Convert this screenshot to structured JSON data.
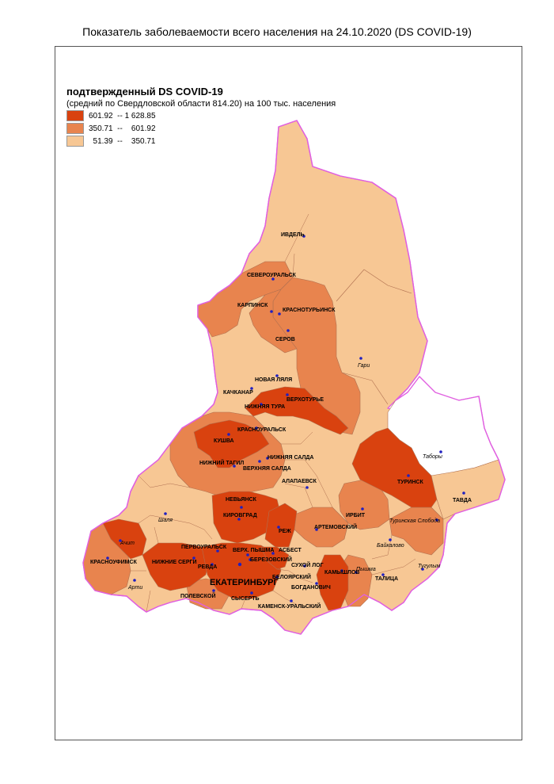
{
  "title": "Показатель заболеваемости всего населения  на 24.10.2020 (DS  COVID-19)",
  "legend": {
    "title": "подтвержденный DS  COVID-19",
    "subtitle": "(средний по Свердловской области 814.20) на 100 тыс. населения",
    "classes": [
      {
        "label": "601.92  -- 1 628.85",
        "color": "#d9420f"
      },
      {
        "label": "350.71  --    601.92",
        "color": "#e8844e"
      },
      {
        "label": "  51.39  --    350.71",
        "color": "#f7c794"
      }
    ]
  },
  "colors": {
    "high": "#d9420f",
    "mid": "#e8844e",
    "low": "#f7c794",
    "none": "#ffffff",
    "border": "#e060e0",
    "dot": "#2020c0"
  },
  "cities": {
    "ivdel": "ИВДЕЛЬ",
    "severouralsk": "СЕВЕРОУРАЛЬСК",
    "karpinsk": "КАРПИНСК",
    "krasnoturinsk": "КРАСНОТУРЬИНСК",
    "serov": "СЕРОВ",
    "gari": "Гари",
    "novaya_lyalya": "НОВАЯ ЛЯЛЯ",
    "kachkanar": "КАЧКАНАР",
    "verkhoturye": "ВЕРХОТУРЬЕ",
    "nizhnyaya_tura": "НИЖНЯЯ ТУРА",
    "kushva": "КУШВА",
    "krasnouralsk": "КРАСНОУРАЛЬСК",
    "nizhny_tagil": "НИЖНИЙ ТАГИЛ",
    "nizhnyaya_salda": "НИЖНЯЯ САЛДА",
    "verkhnyaya_salda": "ВЕРХНЯЯ САЛДА",
    "tabory": "Таборы",
    "alapaevsk": "АЛАПАЕВСК",
    "turinsk": "ТУРИНСК",
    "tavda": "ТАВДА",
    "nevyansk": "НЕВЬЯНСК",
    "kirovgrad": "КИРОВГРАД",
    "irbit": "ИРБИТ",
    "shalya": "Шаля",
    "turinskaya_sloboda": "Туринская Слобода",
    "achit": "Ачит",
    "rezh": "РЕЖ",
    "artemovsky": "АРТЕМОВСКИЙ",
    "baikalovo": "Байкалово",
    "pervouralsk": "ПЕРВОУРАЛЬСК",
    "verkh_pyshma": "ВЕРХ. ПЫШМА",
    "asbest": "АСБЕСТ",
    "berezovsky": "БЕРЕЗОВСКИЙ",
    "sukhoi_log": "СУХОЙ ЛОГ",
    "krasnoufimsk": "КРАСНОУФИМСК",
    "nizhnie_sergi": "НИЖНИЕ СЕРГИ",
    "revda": "РЕВДА",
    "kamyshlov": "КАМЫШЛОВ",
    "pyshma": "Пышма",
    "tugulym": "Тугулым",
    "beloyarsky": "БЕЛОЯРСКИЙ",
    "ekaterinburg": "ЕКАТЕРИНБУРГ",
    "talitsa": "ТАЛИЦА",
    "arti": "Арти",
    "bogdanovich": "БОГДАНОВИЧ",
    "polevskoy": "ПОЛЕВСКОЙ",
    "sysert": "СЫСЕРТЬ",
    "kamensk_uralsky": "КАМЕНСК-УРАЛЬСКИЙ"
  }
}
